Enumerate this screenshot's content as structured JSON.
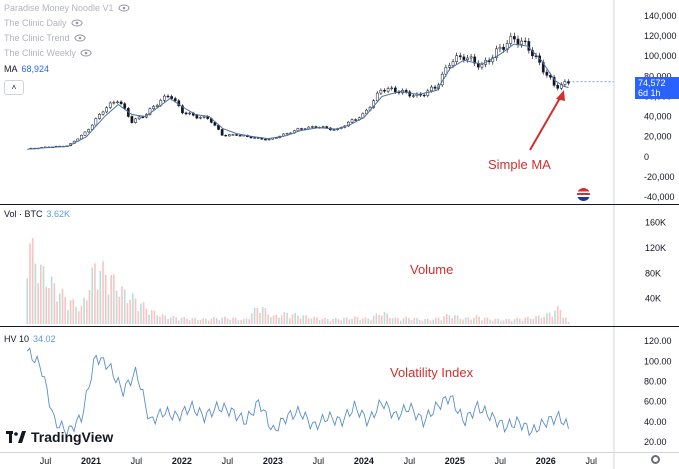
{
  "legend": {
    "indicators": [
      "Paradise Money Noodle V1",
      "The Clinic Daily",
      "The Clinic Trend",
      "The Clinic Weekly"
    ],
    "ma_label": "MA",
    "ma_value": "68,924"
  },
  "price_badge": {
    "price": "74,572",
    "countdown": "6d 1h"
  },
  "annotations": {
    "ma": "Simple MA",
    "volume": "Volume",
    "volatility": "Volatility Index"
  },
  "panes": {
    "volume_title": "Vol · BTC",
    "volume_value": "3.62K",
    "hv_title": "HV 10",
    "hv_value": "34.02"
  },
  "logo": {
    "text": "TradingView"
  },
  "colors": {
    "accent": "#2962ff",
    "annotation": "#d32f2f",
    "up_volume": "#26a69a",
    "down_volume": "#ef5350",
    "hv_line": "#5b8fc9"
  },
  "icons": {
    "legend": "eye-icon",
    "collapse": "chevron-up-icon",
    "flag": "us-flag-icon",
    "settings": "gear-icon"
  },
  "chart_data": [
    {
      "type": "candlestick",
      "ylim": [
        -40000,
        140000
      ],
      "y_ticks": [
        "140,000",
        "120,000",
        "100,000",
        "80,000",
        "60,000",
        "40,000",
        "20,000",
        "0",
        "-20,000",
        "-40,000"
      ],
      "x_ticks": [
        "Jul",
        "2021",
        "Jul",
        "2022",
        "Jul",
        "2023",
        "Jul",
        "2024",
        "Jul",
        "2025",
        "Jul",
        "2026",
        "Jul"
      ],
      "series": [
        {
          "name": "BTC",
          "x": [
            2020.3,
            2020.5,
            2020.75,
            2020.95,
            2021.15,
            2021.3,
            2021.45,
            2021.6,
            2021.75,
            2021.87,
            2022.0,
            2022.15,
            2022.3,
            2022.45,
            2022.6,
            2022.75,
            2022.95,
            2023.15,
            2023.3,
            2023.5,
            2023.7,
            2023.85,
            2024.0,
            2024.2,
            2024.4,
            2024.6,
            2024.8,
            2024.95,
            2025.1,
            2025.3,
            2025.5,
            2025.65,
            2025.8,
            2025.95,
            2026.1,
            2026.2,
            2026.25
          ],
          "values": [
            8000,
            9500,
            11000,
            25000,
            48000,
            57000,
            35000,
            42000,
            55000,
            62000,
            45000,
            40000,
            38000,
            21000,
            22000,
            19500,
            16800,
            23000,
            28000,
            30000,
            26500,
            35000,
            42000,
            68000,
            65000,
            60000,
            70000,
            95000,
            100000,
            90000,
            108000,
            118000,
            110000,
            90000,
            70000,
            72000,
            74572
          ]
        },
        {
          "name": "MA",
          "x": [
            2020.3,
            2020.5,
            2020.75,
            2020.95,
            2021.15,
            2021.3,
            2021.45,
            2021.6,
            2021.75,
            2021.87,
            2022.0,
            2022.15,
            2022.3,
            2022.45,
            2022.6,
            2022.75,
            2022.95,
            2023.15,
            2023.3,
            2023.5,
            2023.7,
            2023.85,
            2024.0,
            2024.2,
            2024.4,
            2024.6,
            2024.8,
            2024.95,
            2025.1,
            2025.3,
            2025.5,
            2025.65,
            2025.8,
            2025.95,
            2026.1,
            2026.2,
            2026.25
          ],
          "values": [
            7500,
            9000,
            10500,
            20000,
            40000,
            52000,
            42000,
            40000,
            50000,
            58000,
            50000,
            42000,
            40000,
            28000,
            23000,
            20500,
            18000,
            21000,
            26000,
            29000,
            27500,
            32000,
            39000,
            60000,
            65000,
            62000,
            66000,
            88000,
            96000,
            92000,
            102000,
            112000,
            110000,
            96000,
            76000,
            70000,
            68924
          ]
        }
      ]
    },
    {
      "type": "bar",
      "ylim": [
        0,
        180000
      ],
      "y_ticks": [
        "160K",
        "120K",
        "80K",
        "40K"
      ],
      "x": [
        2020.3,
        2020.45,
        2020.6,
        2020.75,
        2020.9,
        2021.05,
        2021.2,
        2021.35,
        2021.5,
        2021.65,
        2021.8,
        2021.95,
        2022.1,
        2022.25,
        2022.4,
        2022.55,
        2022.7,
        2022.85,
        2023.0,
        2023.15,
        2023.3,
        2023.45,
        2023.6,
        2023.75,
        2023.9,
        2024.05,
        2024.2,
        2024.35,
        2024.5,
        2024.65,
        2024.8,
        2024.95,
        2025.1,
        2025.25,
        2025.4,
        2025.55,
        2025.7,
        2025.85,
        2026.0,
        2026.15,
        2026.25
      ],
      "values": [
        160000,
        100000,
        70000,
        45000,
        30000,
        110000,
        90000,
        60000,
        45000,
        25000,
        15000,
        12000,
        10000,
        9000,
        12000,
        11000,
        8000,
        35000,
        14000,
        20000,
        16000,
        12000,
        9000,
        10000,
        12000,
        10000,
        22000,
        10000,
        12000,
        8000,
        10000,
        18000,
        10000,
        14000,
        9000,
        8000,
        10000,
        12000,
        16000,
        30000,
        3620
      ]
    },
    {
      "type": "line",
      "ylim": [
        10,
        130
      ],
      "y_ticks": [
        "120.00",
        "100.00",
        "80.00",
        "60.00",
        "40.00",
        "20.00"
      ],
      "series": [
        {
          "name": "HV 10",
          "x": [
            2020.3,
            2020.45,
            2020.6,
            2020.75,
            2020.9,
            2021.05,
            2021.2,
            2021.35,
            2021.5,
            2021.65,
            2021.8,
            2021.95,
            2022.1,
            2022.25,
            2022.4,
            2022.55,
            2022.7,
            2022.85,
            2023.0,
            2023.15,
            2023.3,
            2023.45,
            2023.6,
            2023.75,
            2023.9,
            2024.05,
            2024.2,
            2024.35,
            2024.5,
            2024.65,
            2024.8,
            2024.95,
            2025.1,
            2025.25,
            2025.4,
            2025.55,
            2025.7,
            2025.85,
            2026.0,
            2026.15,
            2026.25
          ],
          "values": [
            110,
            95,
            40,
            30,
            45,
            105,
            95,
            70,
            90,
            40,
            50,
            45,
            55,
            45,
            55,
            50,
            40,
            60,
            30,
            45,
            50,
            35,
            45,
            40,
            55,
            40,
            60,
            45,
            55,
            40,
            55,
            65,
            40,
            55,
            45,
            35,
            40,
            30,
            40,
            45,
            34.02
          ]
        }
      ]
    }
  ]
}
